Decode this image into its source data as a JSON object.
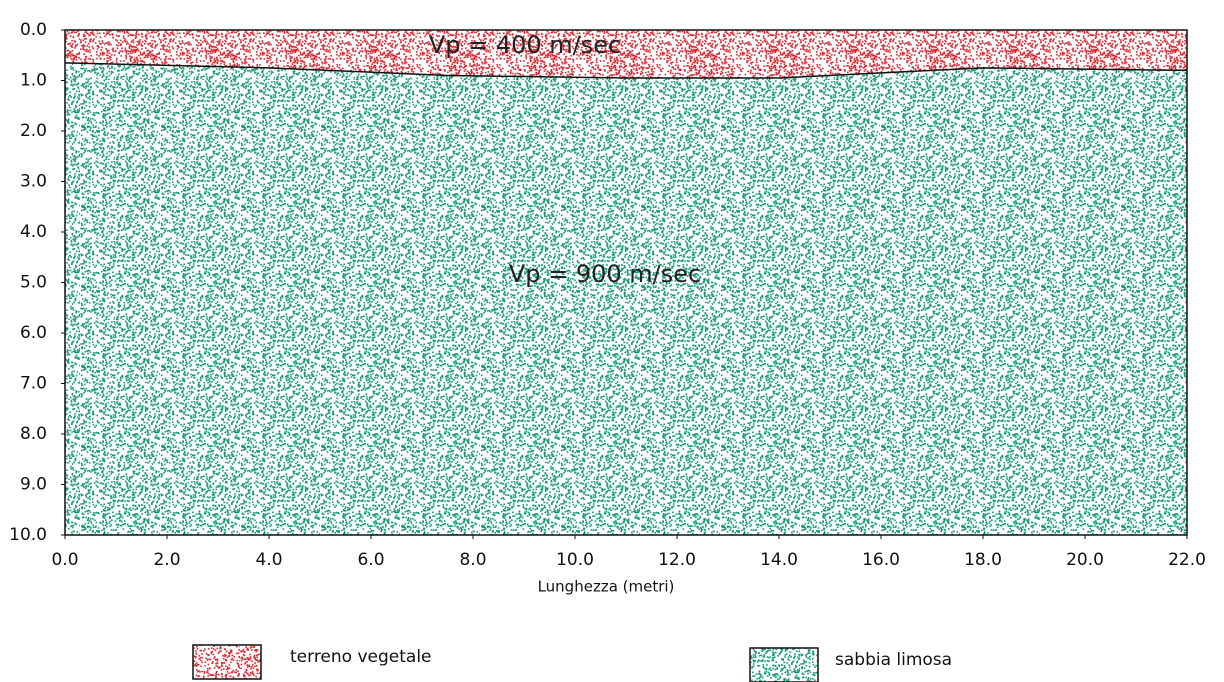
{
  "chart_data": {
    "type": "section",
    "xlabel": "Lunghezza (metri)",
    "xlim": [
      0,
      22
    ],
    "ylim": [
      0,
      10
    ],
    "y_inverted": true,
    "xticks": [
      {
        "value": 0,
        "label": "0.0"
      },
      {
        "value": 2,
        "label": "2.0"
      },
      {
        "value": 4,
        "label": "4.0"
      },
      {
        "value": 6,
        "label": "6.0"
      },
      {
        "value": 8,
        "label": "8.0"
      },
      {
        "value": 10,
        "label": "10.0"
      },
      {
        "value": 12,
        "label": "12.0"
      },
      {
        "value": 14,
        "label": "14.0"
      },
      {
        "value": 16,
        "label": "16.0"
      },
      {
        "value": 18,
        "label": "18.0"
      },
      {
        "value": 20,
        "label": "20.0"
      },
      {
        "value": 22,
        "label": "22.0"
      }
    ],
    "yticks": [
      {
        "value": 0,
        "label": "0.0"
      },
      {
        "value": 1,
        "label": "1.0"
      },
      {
        "value": 2,
        "label": "2.0"
      },
      {
        "value": 3,
        "label": "3.0"
      },
      {
        "value": 4,
        "label": "4.0"
      },
      {
        "value": 5,
        "label": "5.0"
      },
      {
        "value": 6,
        "label": "6.0"
      },
      {
        "value": 7,
        "label": "7.0"
      },
      {
        "value": 8,
        "label": "8.0"
      },
      {
        "value": 9,
        "label": "9.0"
      },
      {
        "value": 10,
        "label": "10.0"
      }
    ],
    "boundary": {
      "x": [
        0,
        4,
        7.5,
        11,
        14,
        16,
        18,
        22
      ],
      "depth": [
        0.65,
        0.75,
        0.9,
        0.95,
        0.95,
        0.85,
        0.75,
        0.8
      ]
    },
    "layers": [
      {
        "name": "terreno vegetale",
        "color": "#d42a35",
        "label": "Vp = 400 m/sec"
      },
      {
        "name": "sabbia limosa",
        "color": "#139a78",
        "label": "Vp = 900 m/sec"
      }
    ]
  }
}
